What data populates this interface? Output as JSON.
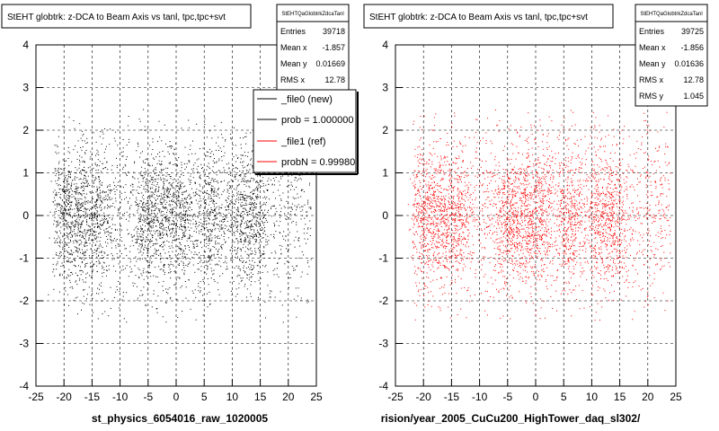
{
  "colors": {
    "new": "#000000",
    "ref": "#ff0000",
    "frame": "#000000",
    "grid": "#000000"
  },
  "bottom_left_text": "",
  "chart_data": [
    {
      "type": "scatter",
      "title": "StEHT globtrk: z-DCA to Beam Axis vs tanl, tpc,tpc+svt",
      "footer": "st_physics_6054016_raw_1020005",
      "xlim": [
        -25,
        25
      ],
      "ylim": [
        -4,
        4
      ],
      "xticks": [
        "-25",
        "-20",
        "-15",
        "-10",
        "-5",
        "0",
        "5",
        "10",
        "15",
        "20",
        "25"
      ],
      "yticks": [
        "-4",
        "-3",
        "-2",
        "-1",
        "0",
        "1",
        "2",
        "3",
        "4"
      ],
      "grid": true,
      "series_color": "#000000",
      "points": 4200,
      "stats": {
        "name": "StEHTQaGlobtrkZdcaTanl",
        "rows": [
          {
            "label": "Entries",
            "value": "39718"
          },
          {
            "label": "Mean x",
            "value": "-1.857"
          },
          {
            "label": "Mean y",
            "value": "0.01669"
          },
          {
            "label": "RMS x",
            "value": "12.78"
          }
        ]
      },
      "legend": [
        {
          "label": "_file0 (new)",
          "color": "#000000"
        },
        {
          "label": "prob = 1.000000",
          "color": "#000000"
        },
        {
          "label": "_file1 (ref)",
          "color": "#ff0000"
        },
        {
          "label": "probN = 0.99980",
          "color": "#ff0000"
        }
      ]
    },
    {
      "type": "scatter",
      "title": "StEHT globtrk: z-DCA to Beam Axis vs tanl, tpc,tpc+svt",
      "footer": "rision/year_2005_CuCu200_HighTower_daq_sl302/",
      "xlim": [
        -25,
        25
      ],
      "ylim": [
        -4,
        4
      ],
      "xticks": [
        "-25",
        "-20",
        "-15",
        "-10",
        "-5",
        "0",
        "5",
        "10",
        "15",
        "20",
        "25"
      ],
      "yticks": [
        "-4",
        "-3",
        "-2",
        "-1",
        "0",
        "1",
        "2",
        "3",
        "4"
      ],
      "grid": true,
      "series_color": "#ff0000",
      "points": 4200,
      "stats": {
        "name": "StEHTQaGlobtrkZdcaTanl",
        "rows": [
          {
            "label": "Entries",
            "value": "39725"
          },
          {
            "label": "Mean x",
            "value": "-1.856"
          },
          {
            "label": "Mean y",
            "value": "0.01636"
          },
          {
            "label": "RMS x",
            "value": "12.78"
          },
          {
            "label": "RMS y",
            "value": "1.045"
          }
        ]
      }
    }
  ]
}
